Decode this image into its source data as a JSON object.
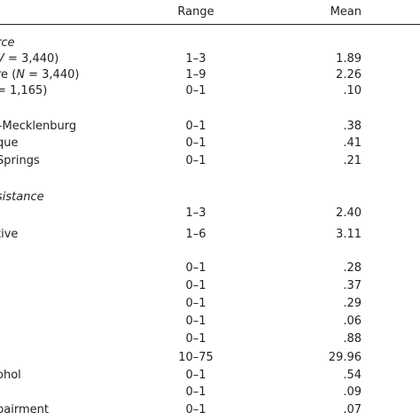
{
  "table": {
    "headers": {
      "range": "Range",
      "mean": "Mean"
    },
    "rows": [
      {
        "label_pre": "",
        "label_italic": "rce",
        "label_post": "",
        "range": "",
        "mean": "",
        "section": true
      },
      {
        "label_pre": "",
        "label_italic": "V",
        "label_post": " = 3,440)",
        "range": "1–3",
        "mean": "1.89"
      },
      {
        "label_pre": "re (",
        "label_italic": "N",
        "label_post": " = 3,440)",
        "range": "1–9",
        "mean": "2.26"
      },
      {
        "label_pre": " = 1,165)",
        "label_italic": "",
        "label_post": "",
        "range": "0–1",
        "mean": ".10"
      },
      {
        "label_pre": "–Mecklenburg",
        "label_italic": "",
        "label_post": "",
        "range": "0–1",
        "mean": ".38"
      },
      {
        "label_pre": "que",
        "label_italic": "",
        "label_post": "",
        "range": "0–1",
        "mean": ".41"
      },
      {
        "label_pre": "Springs",
        "label_italic": "",
        "label_post": "",
        "range": "0–1",
        "mean": ".21"
      },
      {
        "label_pre": "",
        "label_italic": "sistance",
        "label_post": "",
        "range": "",
        "mean": "",
        "section": true
      },
      {
        "label_pre": "",
        "label_italic": "",
        "label_post": "",
        "range": "1–3",
        "mean": "2.40"
      },
      {
        "label_pre": "tive",
        "label_italic": "",
        "label_post": "",
        "range": "1–6",
        "mean": "3.11"
      },
      {
        "label_pre": "",
        "label_italic": "",
        "label_post": "",
        "range": "0–1",
        "mean": ".28"
      },
      {
        "label_pre": "",
        "label_italic": "",
        "label_post": "",
        "range": "0–1",
        "mean": ".37"
      },
      {
        "label_pre": "",
        "label_italic": "",
        "label_post": "",
        "range": "0–1",
        "mean": ".29"
      },
      {
        "label_pre": "",
        "label_italic": "",
        "label_post": "",
        "range": "0–1",
        "mean": ".06"
      },
      {
        "label_pre": "",
        "label_italic": "",
        "label_post": "",
        "range": "0–1",
        "mean": ".88"
      },
      {
        "label_pre": "",
        "label_italic": "",
        "label_post": "",
        "range": "10–75",
        "mean": "29.96"
      },
      {
        "label_pre": "ohol",
        "label_italic": "",
        "label_post": "",
        "range": "0–1",
        "mean": ".54"
      },
      {
        "label_pre": "",
        "label_italic": "",
        "label_post": "",
        "range": "0–1",
        "mean": ".09"
      },
      {
        "label_pre": "pairment",
        "label_italic": "",
        "label_post": "",
        "range": "0–1",
        "mean": ".07"
      }
    ]
  }
}
